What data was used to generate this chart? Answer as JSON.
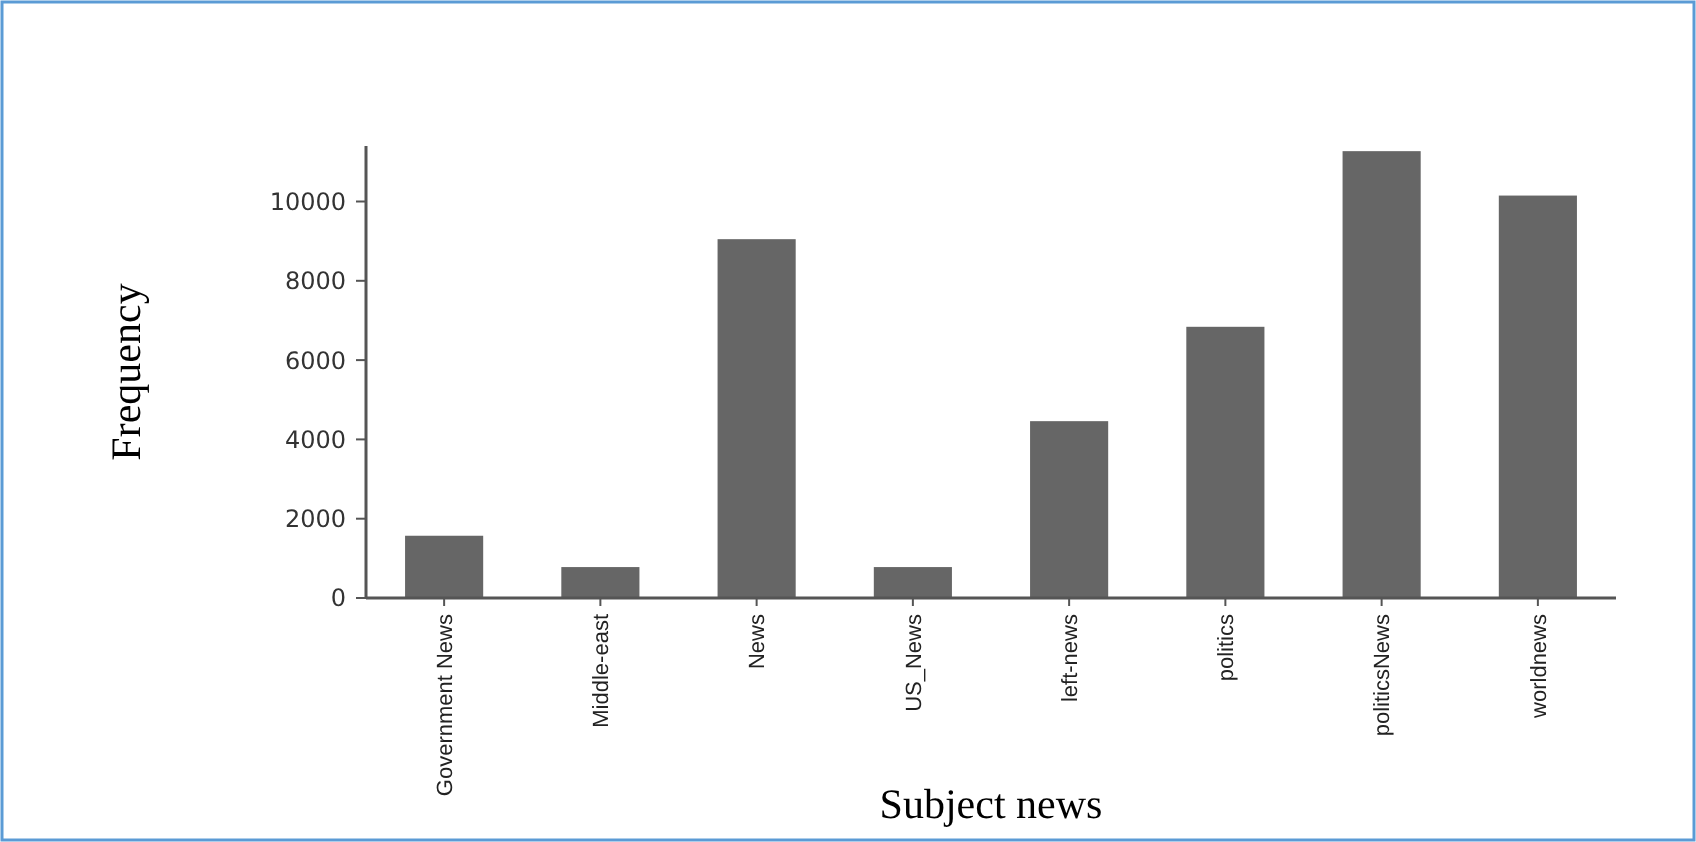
{
  "chart_data": {
    "type": "bar",
    "xlabel": "Subject news",
    "ylabel": "Frequency",
    "categories": [
      "Government News",
      "Middle-east",
      "News",
      "US_News",
      "left-news",
      "politics",
      "politicsNews",
      "worldnews"
    ],
    "values": [
      1570,
      780,
      9050,
      780,
      4460,
      6840,
      11270,
      10150
    ],
    "color": "#666666",
    "ylim": [
      0,
      11400
    ],
    "yticks": [
      0,
      2000,
      4000,
      6000,
      8000,
      10000
    ],
    "grid": false
  }
}
